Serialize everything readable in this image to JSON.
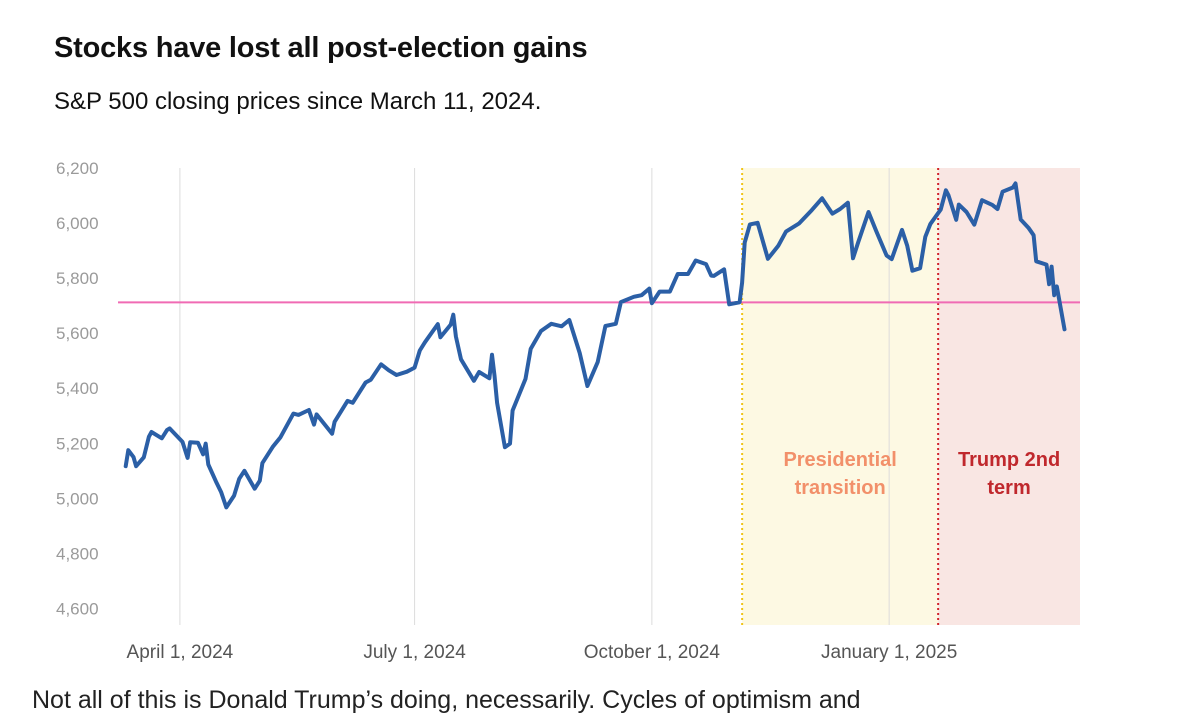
{
  "chart_data": {
    "type": "line",
    "title": "Stocks have lost all post-election gains",
    "subtitle": "S&P 500 closing prices since March 11, 2024.",
    "series": [
      {
        "name": "S&P 500 close",
        "color": "#2b5fa6",
        "points": [
          [
            "2024-03-11",
            5117
          ],
          [
            "2024-03-12",
            5175
          ],
          [
            "2024-03-14",
            5150
          ],
          [
            "2024-03-15",
            5117
          ],
          [
            "2024-03-18",
            5149
          ],
          [
            "2024-03-20",
            5224
          ],
          [
            "2024-03-21",
            5241
          ],
          [
            "2024-03-25",
            5218
          ],
          [
            "2024-03-27",
            5248
          ],
          [
            "2024-03-28",
            5254
          ],
          [
            "2024-04-02",
            5205
          ],
          [
            "2024-04-04",
            5147
          ],
          [
            "2024-04-05",
            5204
          ],
          [
            "2024-04-08",
            5202
          ],
          [
            "2024-04-10",
            5160
          ],
          [
            "2024-04-11",
            5199
          ],
          [
            "2024-04-12",
            5123
          ],
          [
            "2024-04-15",
            5061
          ],
          [
            "2024-04-17",
            5022
          ],
          [
            "2024-04-19",
            4967
          ],
          [
            "2024-04-22",
            5010
          ],
          [
            "2024-04-24",
            5071
          ],
          [
            "2024-04-26",
            5100
          ],
          [
            "2024-04-30",
            5035
          ],
          [
            "2024-05-02",
            5064
          ],
          [
            "2024-05-03",
            5128
          ],
          [
            "2024-05-07",
            5187
          ],
          [
            "2024-05-10",
            5222
          ],
          [
            "2024-05-15",
            5308
          ],
          [
            "2024-05-17",
            5303
          ],
          [
            "2024-05-21",
            5321
          ],
          [
            "2024-05-23",
            5268
          ],
          [
            "2024-05-24",
            5305
          ],
          [
            "2024-05-30",
            5235
          ],
          [
            "2024-05-31",
            5278
          ],
          [
            "2024-06-05",
            5354
          ],
          [
            "2024-06-07",
            5347
          ],
          [
            "2024-06-12",
            5421
          ],
          [
            "2024-06-14",
            5431
          ],
          [
            "2024-06-18",
            5487
          ],
          [
            "2024-06-21",
            5465
          ],
          [
            "2024-06-24",
            5448
          ],
          [
            "2024-06-28",
            5460
          ],
          [
            "2024-07-01",
            5475
          ],
          [
            "2024-07-03",
            5537
          ],
          [
            "2024-07-05",
            5567
          ],
          [
            "2024-07-10",
            5633
          ],
          [
            "2024-07-11",
            5585
          ],
          [
            "2024-07-15",
            5631
          ],
          [
            "2024-07-16",
            5667
          ],
          [
            "2024-07-17",
            5588
          ],
          [
            "2024-07-19",
            5505
          ],
          [
            "2024-07-24",
            5427
          ],
          [
            "2024-07-26",
            5459
          ],
          [
            "2024-07-30",
            5436
          ],
          [
            "2024-07-31",
            5522
          ],
          [
            "2024-08-01",
            5446
          ],
          [
            "2024-08-02",
            5347
          ],
          [
            "2024-08-05",
            5186
          ],
          [
            "2024-08-07",
            5199
          ],
          [
            "2024-08-08",
            5319
          ],
          [
            "2024-08-13",
            5434
          ],
          [
            "2024-08-15",
            5543
          ],
          [
            "2024-08-19",
            5608
          ],
          [
            "2024-08-23",
            5634
          ],
          [
            "2024-08-27",
            5625
          ],
          [
            "2024-08-30",
            5648
          ],
          [
            "2024-09-03",
            5528
          ],
          [
            "2024-09-06",
            5408
          ],
          [
            "2024-09-10",
            5495
          ],
          [
            "2024-09-13",
            5626
          ],
          [
            "2024-09-17",
            5634
          ],
          [
            "2024-09-19",
            5713
          ],
          [
            "2024-09-24",
            5732
          ],
          [
            "2024-09-27",
            5738
          ],
          [
            "2024-09-30",
            5762
          ],
          [
            "2024-10-01",
            5709
          ],
          [
            "2024-10-04",
            5751
          ],
          [
            "2024-10-08",
            5751
          ],
          [
            "2024-10-11",
            5815
          ],
          [
            "2024-10-15",
            5815
          ],
          [
            "2024-10-18",
            5864
          ],
          [
            "2024-10-22",
            5851
          ],
          [
            "2024-10-24",
            5809
          ],
          [
            "2024-10-25",
            5808
          ],
          [
            "2024-10-29",
            5832
          ],
          [
            "2024-10-31",
            5705
          ],
          [
            "2024-11-04",
            5712
          ],
          [
            "2024-11-05",
            5783
          ],
          [
            "2024-11-06",
            5929
          ],
          [
            "2024-11-08",
            5995
          ],
          [
            "2024-11-11",
            6001
          ],
          [
            "2024-11-15",
            5870
          ],
          [
            "2024-11-19",
            5917
          ],
          [
            "2024-11-22",
            5969
          ],
          [
            "2024-11-27",
            5998
          ],
          [
            "2024-12-02",
            6047
          ],
          [
            "2024-12-06",
            6090
          ],
          [
            "2024-12-10",
            6034
          ],
          [
            "2024-12-13",
            6051
          ],
          [
            "2024-12-16",
            6074
          ],
          [
            "2024-12-18",
            5872
          ],
          [
            "2024-12-20",
            5930
          ],
          [
            "2024-12-24",
            6040
          ],
          [
            "2024-12-27",
            5970
          ],
          [
            "2024-12-31",
            5882
          ],
          [
            "2025-01-02",
            5869
          ],
          [
            "2025-01-06",
            5975
          ],
          [
            "2025-01-08",
            5918
          ],
          [
            "2025-01-10",
            5827
          ],
          [
            "2025-01-13",
            5836
          ],
          [
            "2025-01-15",
            5950
          ],
          [
            "2025-01-17",
            5997
          ],
          [
            "2025-01-21",
            6049
          ],
          [
            "2025-01-23",
            6119
          ],
          [
            "2025-01-24",
            6101
          ],
          [
            "2025-01-27",
            6012
          ],
          [
            "2025-01-28",
            6067
          ],
          [
            "2025-01-31",
            6040
          ],
          [
            "2025-02-03",
            5994
          ],
          [
            "2025-02-06",
            6083
          ],
          [
            "2025-02-10",
            6066
          ],
          [
            "2025-02-12",
            6051
          ],
          [
            "2025-02-14",
            6114
          ],
          [
            "2025-02-18",
            6129
          ],
          [
            "2025-02-19",
            6144
          ],
          [
            "2025-02-21",
            6013
          ],
          [
            "2025-02-24",
            5983
          ],
          [
            "2025-02-26",
            5956
          ],
          [
            "2025-02-27",
            5861
          ],
          [
            "2025-03-03",
            5849
          ],
          [
            "2025-03-04",
            5778
          ],
          [
            "2025-03-05",
            5842
          ],
          [
            "2025-03-06",
            5738
          ],
          [
            "2025-03-07",
            5770
          ],
          [
            "2025-03-10",
            5614
          ]
        ]
      }
    ],
    "reference_line": {
      "value": 5712,
      "color": "#f06bb4",
      "label": ""
    },
    "regions": [
      {
        "label_lines": [
          "Presidential",
          "transition"
        ],
        "start": "2024-11-05",
        "end": "2025-01-20",
        "fill": "#fdf9e3",
        "border_color": "#f0c419",
        "label_color": "#f2906a"
      },
      {
        "label_lines": [
          "Trump 2nd",
          "term"
        ],
        "start": "2025-01-20",
        "end": "2025-03-16",
        "fill": "#f9e6e3",
        "border_color": "#d1242b",
        "label_color": "#c0282d"
      }
    ],
    "y_ticks": [
      "6,200",
      "6,000",
      "5,800",
      "5,600",
      "5,400",
      "5,200",
      "5,000",
      "4,800",
      "4,600"
    ],
    "y_tick_values": [
      6200,
      6000,
      5800,
      5600,
      5400,
      5200,
      5000,
      4800,
      4600
    ],
    "ylim": [
      4540,
      6200
    ],
    "x_range": [
      "2024-03-08",
      "2025-03-16"
    ],
    "x_ticks": [
      {
        "date": "2024-04-01",
        "label": "April 1, 2024"
      },
      {
        "date": "2024-07-01",
        "label": "July 1, 2024"
      },
      {
        "date": "2024-10-01",
        "label": "October 1, 2024"
      },
      {
        "date": "2025-01-01",
        "label": "January 1, 2025"
      }
    ],
    "xlabel": "",
    "ylabel": "",
    "grid": "vertical at x ticks",
    "legend": "none"
  },
  "body_text": "Not all of this is Donald Trump’s doing, necessarily. Cycles of optimism and"
}
